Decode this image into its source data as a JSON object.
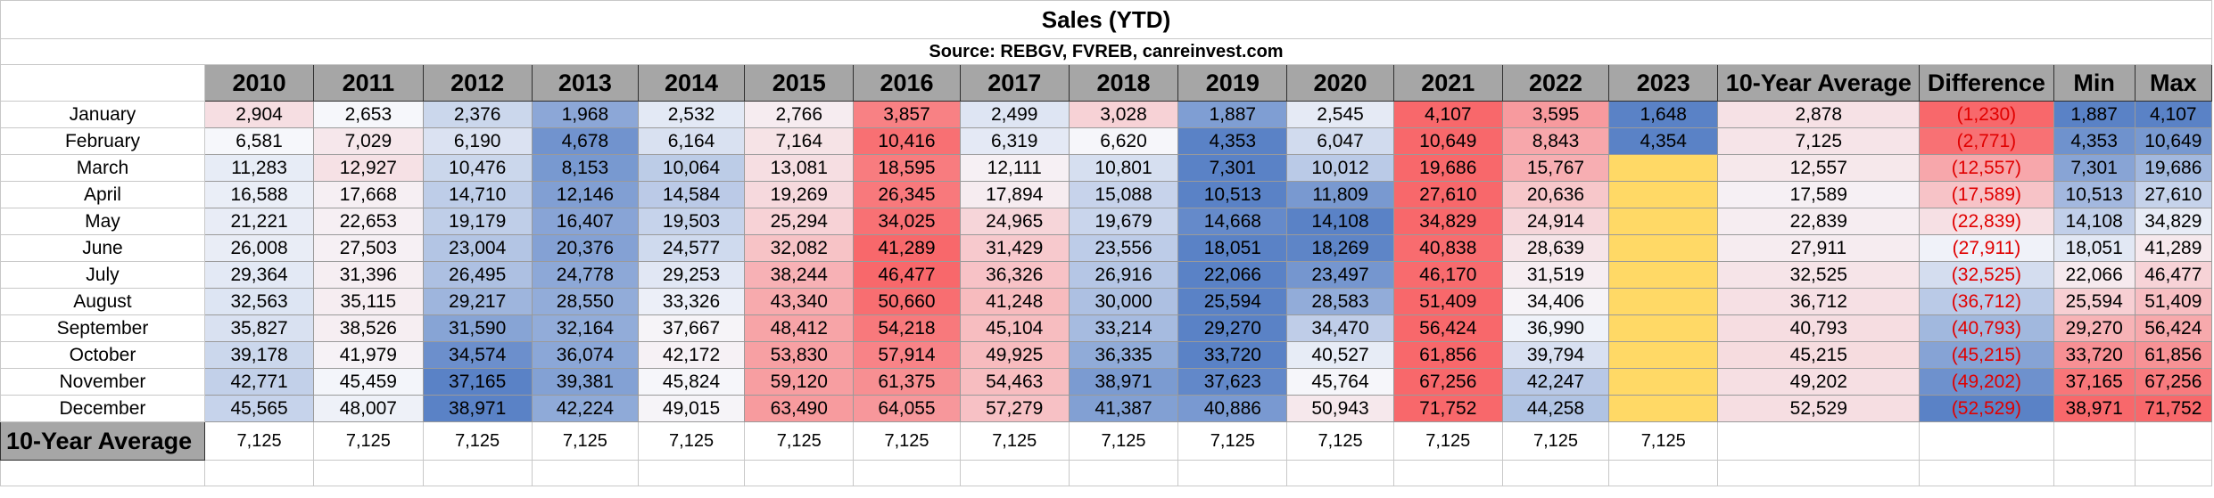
{
  "title": "Sales (YTD)",
  "source": "Source: REBGV, FVREB, canreinvest.com",
  "headers": [
    "2010",
    "2011",
    "2012",
    "2013",
    "2014",
    "2015",
    "2016",
    "2017",
    "2018",
    "2019",
    "2020",
    "2021",
    "2022",
    "2023",
    "10-Year Average",
    "Difference",
    "Min",
    "Max"
  ],
  "year_count": 14,
  "rows": [
    {
      "month": "January",
      "values": [
        "2,904",
        "2,653",
        "2,376",
        "1,968",
        "2,532",
        "2,766",
        "3,857",
        "2,499",
        "3,028",
        "1,887",
        "2,545",
        "4,107",
        "3,595",
        "1,648",
        "2,878",
        "(1,230)",
        "1,887",
        "4,107"
      ]
    },
    {
      "month": "February",
      "values": [
        "6,581",
        "7,029",
        "6,190",
        "4,678",
        "6,164",
        "7,164",
        "10,416",
        "6,319",
        "6,620",
        "4,353",
        "6,047",
        "10,649",
        "8,843",
        "4,354",
        "7,125",
        "(2,771)",
        "4,353",
        "10,649"
      ]
    },
    {
      "month": "March",
      "values": [
        "11,283",
        "12,927",
        "10,476",
        "8,153",
        "10,064",
        "13,081",
        "18,595",
        "12,111",
        "10,801",
        "7,301",
        "10,012",
        "19,686",
        "15,767",
        "",
        "12,557",
        "(12,557)",
        "7,301",
        "19,686"
      ]
    },
    {
      "month": "April",
      "values": [
        "16,588",
        "17,668",
        "14,710",
        "12,146",
        "14,584",
        "19,269",
        "26,345",
        "17,894",
        "15,088",
        "10,513",
        "11,809",
        "27,610",
        "20,636",
        "",
        "17,589",
        "(17,589)",
        "10,513",
        "27,610"
      ]
    },
    {
      "month": "May",
      "values": [
        "21,221",
        "22,653",
        "19,179",
        "16,407",
        "19,503",
        "25,294",
        "34,025",
        "24,965",
        "19,679",
        "14,668",
        "14,108",
        "34,829",
        "24,914",
        "",
        "22,839",
        "(22,839)",
        "14,108",
        "34,829"
      ]
    },
    {
      "month": "June",
      "values": [
        "26,008",
        "27,503",
        "23,004",
        "20,376",
        "24,577",
        "32,082",
        "41,289",
        "31,429",
        "23,556",
        "18,051",
        "18,269",
        "40,838",
        "28,639",
        "",
        "27,911",
        "(27,911)",
        "18,051",
        "41,289"
      ]
    },
    {
      "month": "July",
      "values": [
        "29,364",
        "31,396",
        "26,495",
        "24,778",
        "29,253",
        "38,244",
        "46,477",
        "36,326",
        "26,916",
        "22,066",
        "23,497",
        "46,170",
        "31,519",
        "",
        "32,525",
        "(32,525)",
        "22,066",
        "46,477"
      ]
    },
    {
      "month": "August",
      "values": [
        "32,563",
        "35,115",
        "29,217",
        "28,550",
        "33,326",
        "43,340",
        "50,660",
        "41,248",
        "30,000",
        "25,594",
        "28,583",
        "51,409",
        "34,406",
        "",
        "36,712",
        "(36,712)",
        "25,594",
        "51,409"
      ]
    },
    {
      "month": "September",
      "values": [
        "35,827",
        "38,526",
        "31,590",
        "32,164",
        "37,667",
        "48,412",
        "54,218",
        "45,104",
        "33,214",
        "29,270",
        "34,470",
        "56,424",
        "36,990",
        "",
        "40,793",
        "(40,793)",
        "29,270",
        "56,424"
      ]
    },
    {
      "month": "October",
      "values": [
        "39,178",
        "41,979",
        "34,574",
        "36,074",
        "42,172",
        "53,830",
        "57,914",
        "49,925",
        "36,335",
        "33,720",
        "40,527",
        "61,856",
        "39,794",
        "",
        "45,215",
        "(45,215)",
        "33,720",
        "61,856"
      ]
    },
    {
      "month": "November",
      "values": [
        "42,771",
        "45,459",
        "37,165",
        "39,381",
        "45,824",
        "59,120",
        "61,375",
        "54,463",
        "38,971",
        "37,623",
        "45,764",
        "67,256",
        "42,247",
        "",
        "49,202",
        "(49,202)",
        "37,165",
        "67,256"
      ]
    },
    {
      "month": "December",
      "values": [
        "45,565",
        "48,007",
        "38,971",
        "42,224",
        "49,015",
        "63,490",
        "64,055",
        "57,279",
        "41,387",
        "40,886",
        "50,943",
        "71,752",
        "44,258",
        "",
        "52,529",
        "(52,529)",
        "38,971",
        "71,752"
      ]
    }
  ],
  "avg_label": "10-Year Average",
  "avg_values": [
    "7,125",
    "7,125",
    "7,125",
    "7,125",
    "7,125",
    "7,125",
    "7,125",
    "7,125",
    "7,125",
    "7,125",
    "7,125",
    "7,125",
    "7,125",
    "7,125"
  ],
  "colors": {
    "low": "#5a82c6",
    "mid": "#f6f7fb",
    "high": "#f8686b",
    "missing": "#ffd966",
    "header_bg": "#a6a6a6",
    "negative_text": "#e00000"
  }
}
